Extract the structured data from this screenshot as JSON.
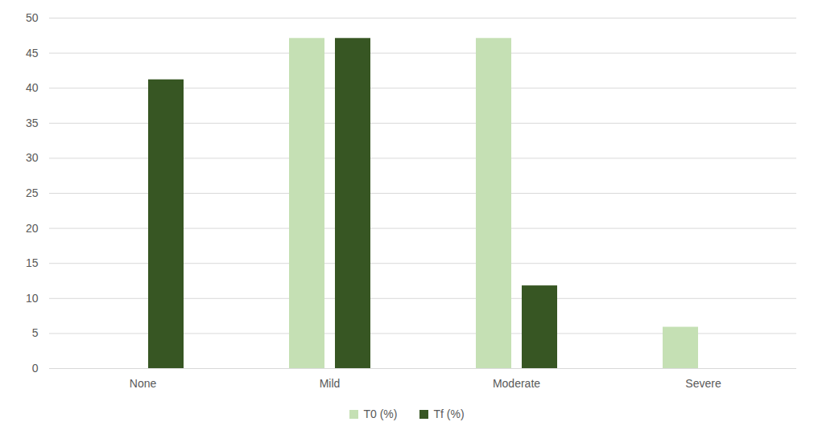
{
  "chart_data": {
    "type": "bar",
    "categories": [
      "None",
      "Mild",
      "Moderate",
      "Severe"
    ],
    "series": [
      {
        "name": "T0 (%)",
        "color": "#c5e0b4",
        "values": [
          0,
          47.1,
          47.1,
          5.9
        ]
      },
      {
        "name": "Tf (%)",
        "color": "#375623",
        "values": [
          41.2,
          47.1,
          11.8,
          0
        ]
      }
    ],
    "ylim": [
      0,
      50
    ],
    "yticks": [
      0,
      5,
      10,
      15,
      20,
      25,
      30,
      35,
      40,
      45,
      50
    ],
    "grid": true,
    "legend": "bottom"
  }
}
